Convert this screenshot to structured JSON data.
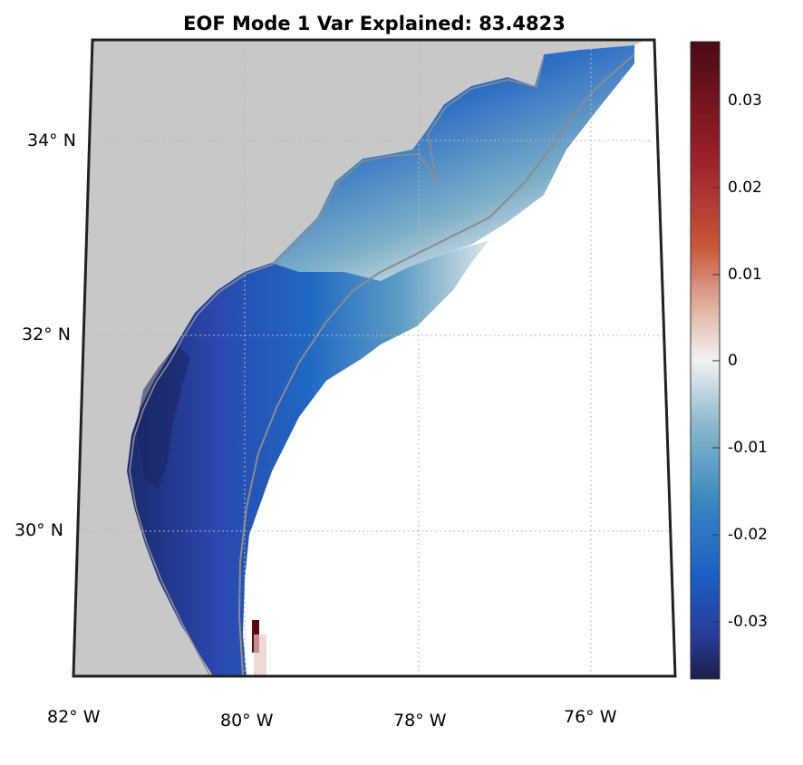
{
  "title": "EOF Mode 1 Var Explained: 83.4823",
  "map": {
    "land_color": "#c8c8c8",
    "ocean_mask_color": "#ffffff",
    "coastline_color": "#8c8c8c",
    "frame_color": "#222222",
    "grid_style": "dotted",
    "lat_labels": [
      "34° N",
      "32° N",
      "30° N"
    ],
    "lon_labels": [
      "82° W",
      "80° W",
      "78° W",
      "76° W"
    ]
  },
  "colorbar": {
    "colormap": "diverging blue-white-red",
    "range": [
      -0.037,
      0.037
    ],
    "tick_labels": [
      "0.03",
      "0.02",
      "0.01",
      "0",
      "-0.01",
      "-0.02",
      "-0.03"
    ],
    "colors": {
      "max": "#4a0a14",
      "high": "#b02a2a",
      "mid_high": "#e8b9a8",
      "zero": "#f2f2f2",
      "mid_low": "#7fb0c8",
      "low": "#1e64c0",
      "min": "#1a1f4a"
    }
  }
}
